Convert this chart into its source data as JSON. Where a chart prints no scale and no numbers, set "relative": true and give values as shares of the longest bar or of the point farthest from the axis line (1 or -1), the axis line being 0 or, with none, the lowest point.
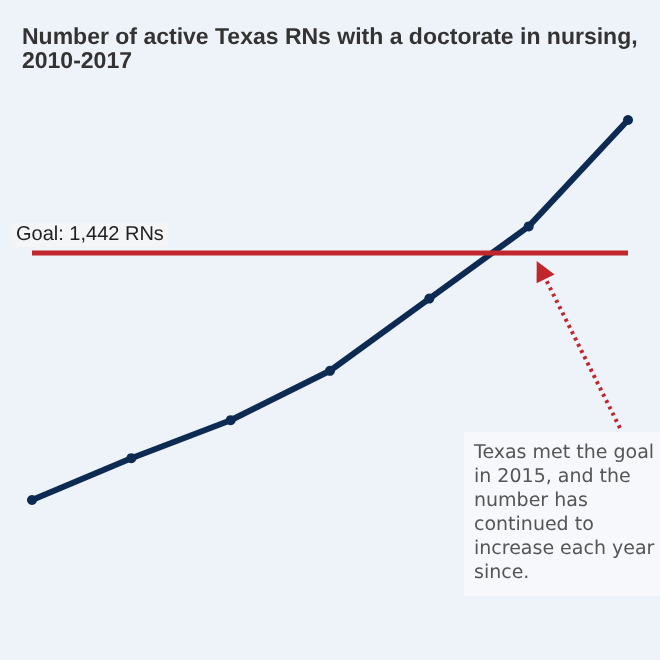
{
  "chart_data": {
    "type": "line",
    "title": "Number of active Texas RNs with a doctorate in nursing, 2010-2017",
    "relative": true,
    "categories": [
      null,
      null,
      null,
      null,
      null,
      null,
      null
    ],
    "series": [
      {
        "color": "#0d2b52",
        "values": [
          0,
          0.11,
          0.21,
          0.34,
          0.53,
          0.72,
          1
        ]
      }
    ],
    "marker": "circle",
    "line_style": "solid",
    "grid": false,
    "ref_lines": [
      {
        "axis": "y",
        "value": 0.65,
        "color": "#c0272d",
        "line_style": "solid"
      }
    ],
    "annotations": [
      {
        "text": "Goal: 1,442 RNs",
        "y": 0.65
      },
      "Texas met the goal in 2015, and the number has continued to increase each year since."
    ]
  }
}
